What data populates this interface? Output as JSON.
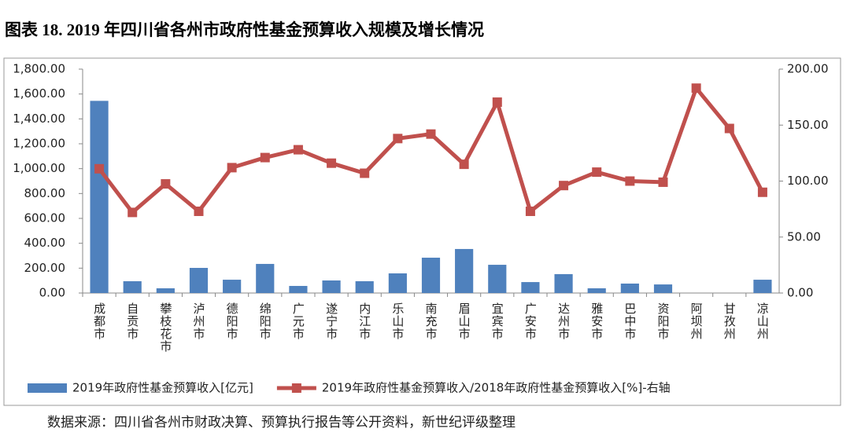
{
  "chart_data": {
    "type": "combo",
    "title": "图表 18. 2019 年四川省各州市政府性基金预算收入规模及增长情况",
    "source": "数据来源：四川省各州市财政决算、预算执行报告等公开资料，新世纪评级整理",
    "categories": [
      "成都市",
      "自贡市",
      "攀枝花市",
      "泸州市",
      "德阳市",
      "绵阳市",
      "广元市",
      "遂宁市",
      "内江市",
      "乐山市",
      "南充市",
      "眉山市",
      "宜宾市",
      "广安市",
      "达州市",
      "雅安市",
      "巴中市",
      "资阳市",
      "阿坝州",
      "甘孜州",
      "凉山州"
    ],
    "series": [
      {
        "name": "2019年政府性基金预算收入[亿元]",
        "type": "bar",
        "axis": "y",
        "color": "#4f81bd",
        "values": [
          1545,
          95,
          38,
          202,
          107,
          234,
          57,
          101,
          95,
          158,
          284,
          354,
          227,
          88,
          152,
          38,
          76,
          69,
          null,
          null,
          107
        ]
      },
      {
        "name": "2019年政府性基金预算收入/2018年政府性基金预算收入[%]-右轴",
        "type": "line",
        "axis": "y2",
        "color": "#c0504d",
        "values": [
          111,
          72,
          97.5,
          73,
          112,
          121,
          128,
          116,
          107,
          138,
          142,
          115,
          170.5,
          73,
          96,
          108,
          100,
          99,
          183,
          147,
          90
        ]
      }
    ],
    "ylim": [
      0,
      1800
    ],
    "yticks": [
      {
        "value": 0,
        "label": "0.00"
      },
      {
        "value": 200,
        "label": "200.00"
      },
      {
        "value": 400,
        "label": "400.00"
      },
      {
        "value": 600,
        "label": "600.00"
      },
      {
        "value": 800,
        "label": "800.00"
      },
      {
        "value": 1000,
        "label": "1,000.00"
      },
      {
        "value": 1200,
        "label": "1,200.00"
      },
      {
        "value": 1400,
        "label": "1,400.00"
      },
      {
        "value": 1600,
        "label": "1,600.00"
      },
      {
        "value": 1800,
        "label": "1,800.00"
      }
    ],
    "y2lim": [
      0,
      200
    ],
    "y2ticks": [
      {
        "value": 0,
        "label": "0.00"
      },
      {
        "value": 50,
        "label": "50.00"
      },
      {
        "value": 100,
        "label": "100.00"
      },
      {
        "value": 150,
        "label": "150.00"
      },
      {
        "value": 200,
        "label": "200.00"
      }
    ],
    "grid": false
  }
}
